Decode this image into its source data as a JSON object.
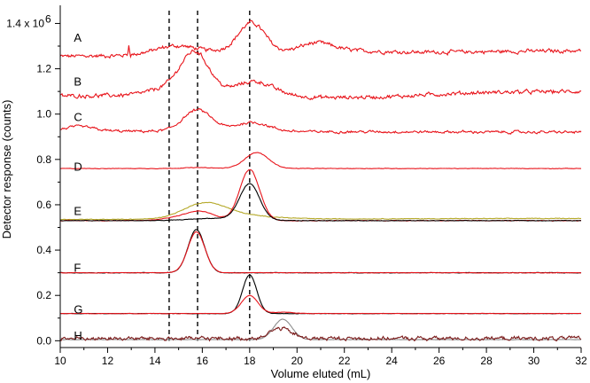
{
  "chart_data": {
    "type": "line",
    "xlabel": "Volume eluted (mL)",
    "ylabel": "Detector response (counts)",
    "y_tick_labels": [
      "0.0",
      "0.2",
      "0.4",
      "0.6",
      "0.8",
      "1.0",
      "1.2",
      "1.4 x 10"
    ],
    "y_exponent": "6",
    "xlim": [
      10,
      32
    ],
    "ylim": [
      -0.03,
      1.48
    ],
    "x_ticks": [
      10,
      12,
      14,
      16,
      18,
      20,
      22,
      24,
      26,
      28,
      30,
      32
    ],
    "y_ticks": [
      0.0,
      0.2,
      0.4,
      0.6,
      0.8,
      1.0,
      1.2,
      1.4
    ],
    "grid": false,
    "reference_lines_x": [
      14.6,
      15.8,
      18.0
    ],
    "colors": {
      "red": "#e8141b",
      "dark_red": "#7a1a1a",
      "black": "#000000",
      "olive": "#b5a92a",
      "gray": "#8c8c8c"
    },
    "traces": [
      {
        "label": "A",
        "label_at": [
          10.5,
          1.34
        ],
        "series": [
          {
            "color": "red",
            "baseline": 1.255,
            "end": 1.28,
            "noise": 0.006,
            "peaks": [
              [
                14.9,
                0.04,
                0.9
              ],
              [
                18.1,
                0.12,
                0.55
              ],
              [
                17.7,
                0.02,
                1.0
              ],
              [
                20.8,
                0.04,
                0.7
              ],
              [
                22.0,
                0.01,
                1.5
              ]
            ],
            "spikes": [
              [
                12.9,
                0.045
              ]
            ]
          }
        ]
      },
      {
        "label": "B",
        "label_at": [
          10.5,
          1.145
        ],
        "series": [
          {
            "color": "red",
            "baseline": 1.08,
            "end": 1.1,
            "noise": 0.006,
            "peaks": [
              [
                15.7,
                0.18,
                0.6
              ],
              [
                14.6,
                0.03,
                0.8
              ],
              [
                18.2,
                0.06,
                0.8
              ],
              [
                20.5,
                -0.01,
                1.5
              ],
              [
                23.5,
                -0.015,
                2.0
              ]
            ],
            "spikes": []
          }
        ]
      },
      {
        "label": "C",
        "label_at": [
          10.5,
          0.99
        ],
        "series": [
          {
            "color": "red",
            "baseline": 0.925,
            "end": 0.92,
            "noise": 0.004,
            "peaks": [
              [
                15.8,
                0.095,
                0.6
              ],
              [
                18.1,
                0.04,
                0.7
              ],
              [
                10.8,
                0.02,
                0.6
              ]
            ],
            "spikes": []
          }
        ]
      },
      {
        "label": "D",
        "label_at": [
          10.5,
          0.77
        ],
        "series": [
          {
            "color": "red",
            "baseline": 0.76,
            "end": 0.76,
            "noise": 0.0008,
            "peaks": [
              [
                18.3,
                0.07,
                0.5
              ],
              [
                15.8,
                0.004,
                0.6
              ]
            ],
            "spikes": []
          }
        ]
      },
      {
        "label": "E",
        "label_at": [
          10.5,
          0.575
        ],
        "series": [
          {
            "color": "olive",
            "baseline": 0.535,
            "end": 0.54,
            "noise": 0.001,
            "peaks": [
              [
                16.1,
                0.065,
                0.9
              ],
              [
                17.6,
                0.015,
                1.4
              ]
            ],
            "spikes": []
          },
          {
            "color": "red",
            "baseline": 0.53,
            "end": 0.53,
            "noise": 0.001,
            "peaks": [
              [
                18.0,
                0.225,
                0.42
              ],
              [
                15.9,
                0.04,
                0.6
              ],
              [
                14.8,
                0.01,
                0.6
              ]
            ],
            "spikes": []
          },
          {
            "color": "black",
            "baseline": 0.53,
            "end": 0.53,
            "noise": 0.0008,
            "peaks": [
              [
                18.0,
                0.16,
                0.42
              ],
              [
                16.5,
                0.01,
                1.0
              ]
            ],
            "spikes": []
          }
        ]
      },
      {
        "label": "F",
        "label_at": [
          10.5,
          0.325
        ],
        "series": [
          {
            "color": "black",
            "baseline": 0.3,
            "end": 0.3,
            "noise": 0.0008,
            "peaks": [
              [
                15.75,
                0.19,
                0.35
              ]
            ],
            "spikes": []
          },
          {
            "color": "red",
            "baseline": 0.3,
            "end": 0.3,
            "noise": 0.0008,
            "peaks": [
              [
                15.75,
                0.18,
                0.36
              ]
            ],
            "spikes": []
          }
        ]
      },
      {
        "label": "G",
        "label_at": [
          10.5,
          0.14
        ],
        "series": [
          {
            "color": "black",
            "baseline": 0.12,
            "end": 0.12,
            "noise": 0.0006,
            "peaks": [
              [
                18.0,
                0.17,
                0.3
              ]
            ],
            "spikes": []
          },
          {
            "color": "red",
            "baseline": 0.12,
            "end": 0.12,
            "noise": 0.0006,
            "peaks": [
              [
                18.0,
                0.08,
                0.35
              ],
              [
                19.4,
                0.006,
                0.4
              ]
            ],
            "spikes": []
          }
        ]
      },
      {
        "label": "H",
        "label_at": [
          10.5,
          0.025
        ],
        "series": [
          {
            "color": "gray",
            "baseline": 0.005,
            "end": 0.005,
            "noise": 0.0005,
            "peaks": [
              [
                19.4,
                0.09,
                0.38
              ]
            ],
            "spikes": []
          },
          {
            "color": "dark_red",
            "baseline": 0.01,
            "end": 0.01,
            "noise": 0.006,
            "peaks": [
              [
                19.3,
                0.045,
                0.45
              ]
            ],
            "spikes": []
          }
        ]
      }
    ]
  }
}
